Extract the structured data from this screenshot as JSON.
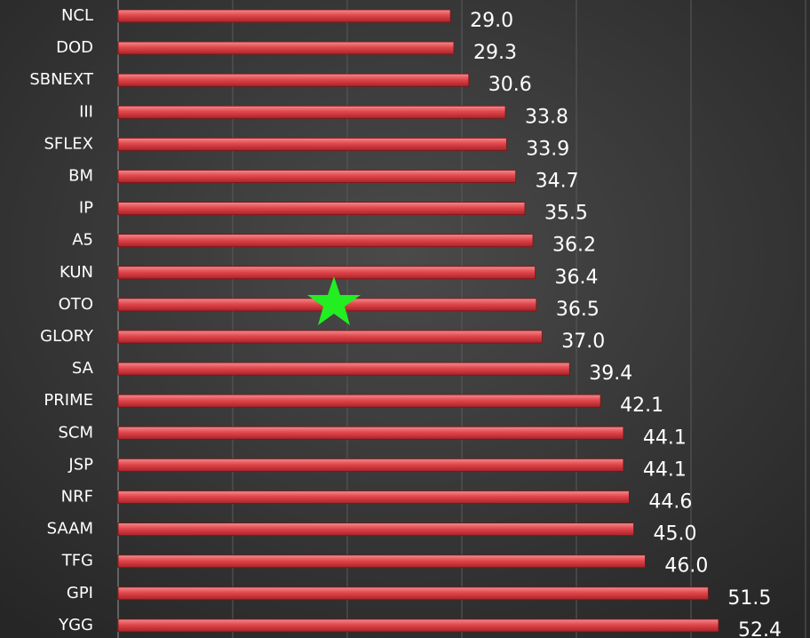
{
  "chart_data": {
    "type": "barh",
    "categories": [
      "NCL",
      "DOD",
      "SBNEXT",
      "III",
      "SFLEX",
      "BM",
      "IP",
      "A5",
      "KUN",
      "OTO",
      "GLORY",
      "SA",
      "PRIME",
      "SCM",
      "JSP",
      "NRF",
      "SAAM",
      "TFG",
      "GPI",
      "YGG"
    ],
    "values": [
      29.0,
      29.3,
      30.6,
      33.8,
      33.9,
      34.7,
      35.5,
      36.2,
      36.4,
      36.5,
      37.0,
      39.4,
      42.1,
      44.1,
      44.1,
      44.6,
      45.0,
      46.0,
      51.5,
      52.4
    ],
    "value_labels": [
      "29.0",
      "29.3",
      "30.6",
      "33.8",
      "33.9",
      "34.7",
      "35.5",
      "36.2",
      "36.4",
      "36.5",
      "37.0",
      "39.4",
      "42.1",
      "44.1",
      "44.1",
      "44.6",
      "45.0",
      "46.0",
      "51.5",
      "52.4"
    ],
    "color": "#e0474c",
    "xlim": [
      0,
      60
    ],
    "xticks": [
      0,
      10,
      20,
      30,
      40,
      50,
      60
    ],
    "grid": true
  }
}
